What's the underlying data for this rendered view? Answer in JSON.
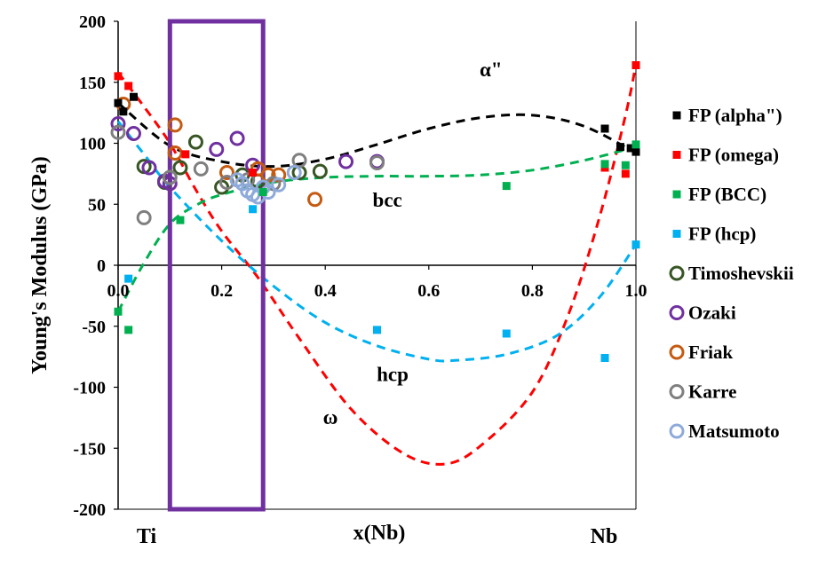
{
  "chart_data": {
    "type": "scatter",
    "xlabel": "x(Nb)",
    "ylabel": "Young's Modulus (GPa)",
    "xlim": [
      0,
      1
    ],
    "ylim": [
      -200,
      200
    ],
    "x_ticks": [
      "0.0",
      "0.2",
      "0.4",
      "0.6",
      "0.8",
      "1.0"
    ],
    "y_ticks": [
      "200",
      "150",
      "100",
      "50",
      "0",
      "-50",
      "-100",
      "-150",
      "-200"
    ],
    "x_end_labels": {
      "left": "Ti",
      "right": "Nb"
    },
    "grid": false,
    "legend_position": "right",
    "highlight_box": {
      "x_range": [
        0.1,
        0.28
      ],
      "y_range": [
        -200,
        200
      ],
      "color": "#7030a0"
    },
    "annotations": [
      {
        "text": "α\"",
        "x": 0.72,
        "y": 155
      },
      {
        "text": "bcc",
        "x": 0.52,
        "y": 48
      },
      {
        "text": "hcp",
        "x": 0.53,
        "y": -95
      },
      {
        "text": "ω",
        "x": 0.41,
        "y": -130
      }
    ],
    "series": [
      {
        "name": "FP (alpha\")",
        "marker": "square",
        "color": "#000000",
        "points": [
          [
            0.0,
            133
          ],
          [
            0.01,
            126
          ],
          [
            0.03,
            138
          ],
          [
            0.94,
            112
          ],
          [
            0.97,
            97
          ],
          [
            0.99,
            96
          ],
          [
            1.0,
            93
          ]
        ]
      },
      {
        "name": "FP (omega)",
        "marker": "square",
        "color": "#ff0000",
        "points": [
          [
            0.0,
            155
          ],
          [
            0.02,
            147
          ],
          [
            0.13,
            91
          ],
          [
            0.26,
            76
          ],
          [
            0.94,
            80
          ],
          [
            0.98,
            75
          ],
          [
            1.0,
            164
          ]
        ]
      },
      {
        "name": "FP (BCC)",
        "marker": "square",
        "color": "#00b050",
        "points": [
          [
            0.0,
            -38
          ],
          [
            0.02,
            -53
          ],
          [
            0.12,
            37
          ],
          [
            0.28,
            60
          ],
          [
            0.75,
            65
          ],
          [
            0.94,
            83
          ],
          [
            0.98,
            82
          ],
          [
            1.0,
            99
          ]
        ]
      },
      {
        "name": "FP (hcp)",
        "marker": "square",
        "color": "#00b0f0",
        "points": [
          [
            0.02,
            -11
          ],
          [
            0.26,
            46
          ],
          [
            0.5,
            -53
          ],
          [
            0.75,
            -56
          ],
          [
            0.94,
            -76
          ],
          [
            1.0,
            17
          ]
        ]
      },
      {
        "name": "Timoshevskii",
        "marker": "circle",
        "color": "#375623",
        "points": [
          [
            0.05,
            81
          ],
          [
            0.09,
            68
          ],
          [
            0.12,
            80
          ],
          [
            0.15,
            101
          ],
          [
            0.2,
            64
          ],
          [
            0.24,
            74
          ],
          [
            0.27,
            69
          ],
          [
            0.35,
            76
          ],
          [
            0.39,
            77
          ]
        ]
      },
      {
        "name": "Ozaki",
        "marker": "circle",
        "color": "#7030a0",
        "points": [
          [
            0.0,
            116
          ],
          [
            0.03,
            108
          ],
          [
            0.06,
            80
          ],
          [
            0.09,
            69
          ],
          [
            0.1,
            67
          ],
          [
            0.19,
            95
          ],
          [
            0.23,
            104
          ],
          [
            0.26,
            82
          ],
          [
            0.44,
            85
          ],
          [
            0.5,
            85
          ]
        ]
      },
      {
        "name": "Friak",
        "marker": "circle",
        "color": "#c55a11",
        "points": [
          [
            0.01,
            132
          ],
          [
            0.11,
            115
          ],
          [
            0.11,
            92
          ],
          [
            0.21,
            76
          ],
          [
            0.27,
            79
          ],
          [
            0.29,
            74
          ],
          [
            0.31,
            74
          ],
          [
            0.38,
            54
          ]
        ]
      },
      {
        "name": "Karre",
        "marker": "circle",
        "color": "#7f7f7f",
        "points": [
          [
            0.0,
            109
          ],
          [
            0.05,
            39
          ],
          [
            0.1,
            72
          ],
          [
            0.16,
            79
          ],
          [
            0.21,
            68
          ],
          [
            0.25,
            70
          ],
          [
            0.3,
            67
          ],
          [
            0.35,
            86
          ],
          [
            0.5,
            84
          ]
        ]
      },
      {
        "name": "Matsumoto",
        "marker": "circle",
        "color": "#8eaadb",
        "points": [
          [
            0.23,
            70
          ],
          [
            0.24,
            67
          ],
          [
            0.25,
            61
          ],
          [
            0.26,
            58
          ],
          [
            0.27,
            56
          ],
          [
            0.28,
            64
          ],
          [
            0.29,
            60
          ],
          [
            0.31,
            66
          ],
          [
            0.34,
            76
          ]
        ]
      }
    ],
    "fits": [
      {
        "color": "#000000",
        "points": [
          [
            0.0,
            133
          ],
          [
            0.1,
            98
          ],
          [
            0.2,
            85
          ],
          [
            0.3,
            81
          ],
          [
            0.4,
            87
          ],
          [
            0.5,
            99
          ],
          [
            0.6,
            112
          ],
          [
            0.7,
            121
          ],
          [
            0.8,
            123
          ],
          [
            0.9,
            114
          ],
          [
            1.0,
            92
          ]
        ]
      },
      {
        "color": "#ff0000",
        "points": [
          [
            0.0,
            158
          ],
          [
            0.05,
            130
          ],
          [
            0.1,
            100
          ],
          [
            0.15,
            62
          ],
          [
            0.2,
            28
          ],
          [
            0.27,
            -10
          ],
          [
            0.35,
            -60
          ],
          [
            0.45,
            -118
          ],
          [
            0.55,
            -154
          ],
          [
            0.63,
            -163
          ],
          [
            0.7,
            -148
          ],
          [
            0.8,
            -104
          ],
          [
            0.87,
            -40
          ],
          [
            0.93,
            40
          ],
          [
            0.98,
            123
          ],
          [
            1.0,
            165
          ]
        ]
      },
      {
        "color": "#00b050",
        "points": [
          [
            0.0,
            -38
          ],
          [
            0.05,
            2
          ],
          [
            0.1,
            34
          ],
          [
            0.15,
            49
          ],
          [
            0.2,
            58
          ],
          [
            0.3,
            68
          ],
          [
            0.4,
            72
          ],
          [
            0.5,
            73
          ],
          [
            0.6,
            73
          ],
          [
            0.7,
            74
          ],
          [
            0.8,
            78
          ],
          [
            0.9,
            86
          ],
          [
            1.0,
            97
          ]
        ]
      },
      {
        "color": "#00b0f0",
        "points": [
          [
            0.0,
            118
          ],
          [
            0.05,
            91
          ],
          [
            0.1,
            64
          ],
          [
            0.2,
            20
          ],
          [
            0.3,
            -17
          ],
          [
            0.4,
            -47
          ],
          [
            0.5,
            -66
          ],
          [
            0.6,
            -77
          ],
          [
            0.65,
            -78
          ],
          [
            0.75,
            -73
          ],
          [
            0.85,
            -57
          ],
          [
            0.93,
            -26
          ],
          [
            1.0,
            17
          ]
        ]
      }
    ]
  }
}
